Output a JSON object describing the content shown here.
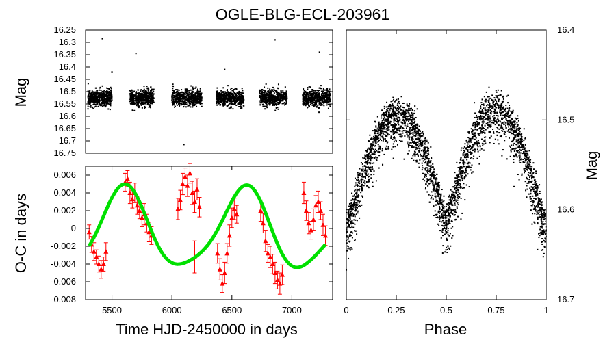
{
  "title": "OGLE-BLG-ECL-203961",
  "chart_data": [
    {
      "name": "light-curve",
      "type": "scatter",
      "xlabel": "",
      "ylabel": "Mag",
      "xlim": [
        5280,
        7340
      ],
      "ylim": [
        16.75,
        16.25
      ],
      "y_inverted": true,
      "yticks": [
        16.25,
        16.3,
        16.35,
        16.4,
        16.45,
        16.5,
        16.55,
        16.6,
        16.65,
        16.7,
        16.75
      ],
      "ytick_labels": [
        "16.25",
        "16.3",
        "16.35",
        "16.4",
        "16.45",
        "16.5",
        "16.55",
        "16.6",
        "16.65",
        "16.7",
        "16.75"
      ],
      "seasons": [
        {
          "start": 5300,
          "end": 5500,
          "center_mag": 16.525,
          "spread": 0.03
        },
        {
          "start": 5650,
          "end": 5850,
          "center_mag": 16.525,
          "spread": 0.03
        },
        {
          "start": 6000,
          "end": 6250,
          "center_mag": 16.525,
          "spread": 0.03
        },
        {
          "start": 6370,
          "end": 6600,
          "center_mag": 16.525,
          "spread": 0.03
        },
        {
          "start": 6730,
          "end": 6960,
          "center_mag": 16.525,
          "spread": 0.03
        },
        {
          "start": 7090,
          "end": 7320,
          "center_mag": 16.525,
          "spread": 0.03
        }
      ],
      "outliers": [
        [
          5420,
          16.285
        ],
        [
          5700,
          16.345
        ],
        [
          6440,
          16.41
        ],
        [
          6860,
          16.29
        ],
        [
          7230,
          16.34
        ],
        [
          6100,
          16.715
        ],
        [
          5500,
          16.42
        ]
      ]
    },
    {
      "name": "o-c-diagram",
      "type": "scatter+line",
      "xlabel": "Time HJD-2450000 in days",
      "ylabel": "O-C in days",
      "xlim": [
        5280,
        7340
      ],
      "ylim": [
        -0.008,
        0.007
      ],
      "yticks": [
        -0.008,
        -0.006,
        -0.004,
        -0.002,
        0,
        0.002,
        0.004,
        0.006
      ],
      "ytick_labels": [
        "-0.008",
        "-0.006",
        "-0.004",
        "-0.002",
        "0",
        "0.002",
        "0.004",
        "0.006"
      ],
      "xticks": [
        5500,
        6000,
        6500,
        7000
      ],
      "xtick_labels": [
        "5500",
        "6000",
        "6500",
        "7000"
      ],
      "fit_model": {
        "offset": -0.0002,
        "amp1": 0.0044,
        "period1": 1000,
        "t_peak1": 5600,
        "amp2": 0.0008,
        "period2": 520,
        "t_peak2": 6140,
        "x_range": [
          5310,
          7280
        ]
      },
      "fit_color": "#00e000",
      "points_color": "#ff0000",
      "points": [
        [
          5310,
          -0.0004,
          0.0008
        ],
        [
          5330,
          -0.0018,
          0.0009
        ],
        [
          5350,
          -0.0026,
          0.001
        ],
        [
          5370,
          -0.0032,
          0.0008
        ],
        [
          5390,
          -0.004,
          0.0009
        ],
        [
          5410,
          -0.0046,
          0.001
        ],
        [
          5430,
          -0.004,
          0.0008
        ],
        [
          5450,
          -0.0026,
          0.001
        ],
        [
          5610,
          0.0052,
          0.001
        ],
        [
          5630,
          0.0056,
          0.0009
        ],
        [
          5650,
          0.004,
          0.0012
        ],
        [
          5670,
          0.0033,
          0.001
        ],
        [
          5690,
          0.004,
          0.0011
        ],
        [
          5710,
          0.0026,
          0.001
        ],
        [
          5730,
          0.002,
          0.0009
        ],
        [
          5750,
          0.0012,
          0.001
        ],
        [
          5770,
          0.0016,
          0.0012
        ],
        [
          5790,
          0.0006,
          0.001
        ],
        [
          5810,
          -0.0004,
          0.0011
        ],
        [
          5830,
          -0.0008,
          0.001
        ],
        [
          6050,
          0.0022,
          0.0012
        ],
        [
          6070,
          0.0032,
          0.0011
        ],
        [
          6090,
          0.005,
          0.0012
        ],
        [
          6110,
          0.0058,
          0.001
        ],
        [
          6130,
          0.0048,
          0.0012
        ],
        [
          6150,
          0.0062,
          0.0011
        ],
        [
          6170,
          0.004,
          0.0013
        ],
        [
          6190,
          0.003,
          0.0012
        ],
        [
          6210,
          0.0044,
          0.0012
        ],
        [
          6230,
          0.0024,
          0.0011
        ],
        [
          6190,
          -0.0032,
          0.0018
        ],
        [
          6380,
          -0.0028,
          0.0011
        ],
        [
          6400,
          -0.0046,
          0.0012
        ],
        [
          6420,
          -0.0062,
          0.001
        ],
        [
          6440,
          -0.005,
          0.0012
        ],
        [
          6460,
          -0.0028,
          0.0011
        ],
        [
          6480,
          -0.0008,
          0.0012
        ],
        [
          6500,
          0.0012,
          0.0011
        ],
        [
          6520,
          0.0022,
          0.0012
        ],
        [
          6540,
          0.0016,
          0.001
        ],
        [
          6740,
          0.002,
          0.0012
        ],
        [
          6760,
          0.0006,
          0.0011
        ],
        [
          6780,
          -0.0014,
          0.0012
        ],
        [
          6800,
          -0.0028,
          0.001
        ],
        [
          6820,
          -0.0032,
          0.0012
        ],
        [
          6840,
          -0.004,
          0.0011
        ],
        [
          6860,
          -0.005,
          0.0012
        ],
        [
          6880,
          -0.0058,
          0.001
        ],
        [
          6900,
          -0.0062,
          0.0012
        ],
        [
          6920,
          -0.0052,
          0.0011
        ],
        [
          7100,
          0.004,
          0.0012
        ],
        [
          7120,
          0.002,
          0.0011
        ],
        [
          7140,
          0.0006,
          0.0012
        ],
        [
          7160,
          -0.0002,
          0.001
        ],
        [
          7180,
          0.001,
          0.0012
        ],
        [
          7200,
          0.0026,
          0.0011
        ],
        [
          7220,
          0.003,
          0.0012
        ],
        [
          7240,
          0.002,
          0.001
        ],
        [
          7260,
          0.0004,
          0.0012
        ],
        [
          7280,
          -0.0008,
          0.0011
        ]
      ]
    },
    {
      "name": "phased-light-curve",
      "type": "scatter",
      "xlabel": "Phase",
      "ylabel": "Mag",
      "xlim": [
        0,
        1
      ],
      "ylim": [
        16.7,
        16.4
      ],
      "y_inverted": true,
      "xticks": [
        0,
        0.25,
        0.5,
        0.75,
        1
      ],
      "xtick_labels": [
        "0",
        "0.25",
        "0.5",
        "0.75",
        "1"
      ],
      "yticks": [
        16.4,
        16.5,
        16.6,
        16.7
      ],
      "ytick_labels": [
        "16.4",
        "16.5",
        "16.6",
        "16.7"
      ],
      "yaxis_side": "right",
      "model": {
        "max_mag_p025": 16.495,
        "max_mag_p075": 16.488,
        "min_mag_p05": 16.615,
        "min_mag_p0": 16.625,
        "scatter": 0.04
      }
    }
  ]
}
